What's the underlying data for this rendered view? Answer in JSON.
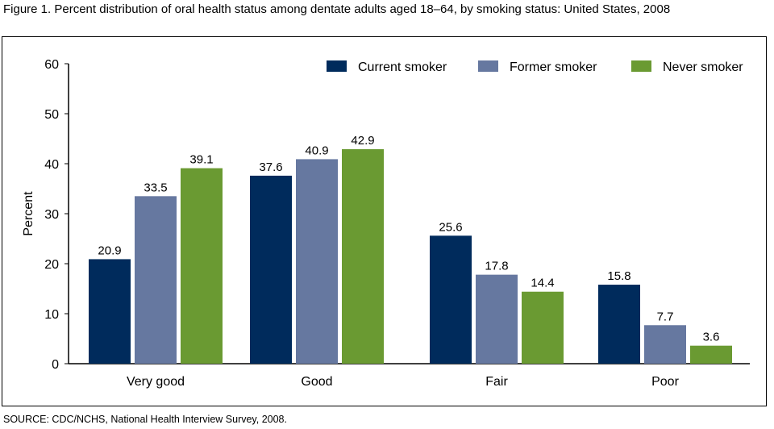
{
  "title": "Figure 1. Percent distribution of oral health status among dentate adults aged 18–64, by smoking status: United States, 2008",
  "source": "SOURCE: CDC/NCHS, National Health Interview Survey, 2008.",
  "chart_data": {
    "type": "bar",
    "title": "Figure 1. Percent distribution of oral health status among dentate adults aged 18–64, by smoking status: United States, 2008",
    "xlabel": "",
    "ylabel": "Percent",
    "ylim": [
      0,
      60
    ],
    "yticks": [
      0,
      10,
      20,
      30,
      40,
      50,
      60
    ],
    "categories": [
      "Very good",
      "Good",
      "Fair",
      "Poor"
    ],
    "series": [
      {
        "name": "Current smoker",
        "color": "#002b5c",
        "values": [
          20.9,
          37.6,
          25.6,
          15.8
        ]
      },
      {
        "name": "Former smoker",
        "color": "#6678a0",
        "values": [
          33.5,
          40.9,
          17.8,
          7.7
        ]
      },
      {
        "name": "Never smoker",
        "color": "#6a9a32",
        "values": [
          39.1,
          42.9,
          14.4,
          3.6
        ]
      }
    ],
    "legend": "top-right",
    "grid": false
  }
}
